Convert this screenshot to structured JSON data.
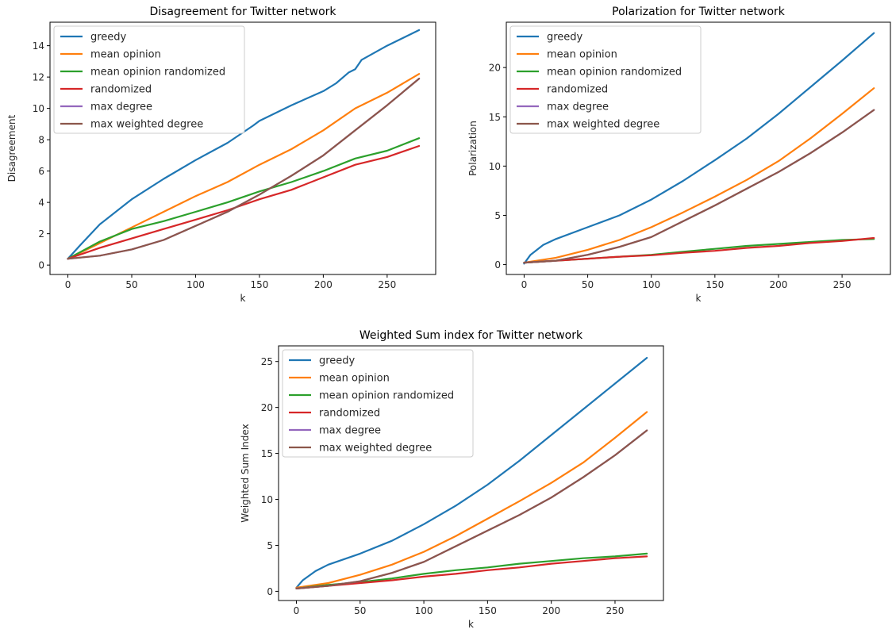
{
  "chart_data": [
    {
      "type": "line",
      "title": "Disagreement for Twitter network",
      "xlabel": "k",
      "ylabel": "Disagreement",
      "xlim": [
        -14,
        288
      ],
      "ylim": [
        -0.6,
        15.5
      ],
      "xticks": [
        0,
        50,
        100,
        150,
        200,
        250
      ],
      "yticks": [
        0,
        2,
        4,
        6,
        8,
        10,
        12,
        14
      ],
      "grid": false,
      "legend_position": "upper-left",
      "series": [
        {
          "name": "greedy",
          "color": "#1f77b4",
          "points": [
            [
              0,
              0.4
            ],
            [
              10,
              1.3
            ],
            [
              25,
              2.6
            ],
            [
              50,
              4.2
            ],
            [
              75,
              5.5
            ],
            [
              100,
              6.7
            ],
            [
              125,
              7.8
            ],
            [
              145,
              8.9
            ],
            [
              150,
              9.2
            ],
            [
              175,
              10.2
            ],
            [
              200,
              11.1
            ],
            [
              210,
              11.6
            ],
            [
              220,
              12.3
            ],
            [
              225,
              12.5
            ],
            [
              230,
              13.1
            ],
            [
              250,
              14.0
            ],
            [
              275,
              15.0
            ]
          ]
        },
        {
          "name": "mean opinion",
          "color": "#ff7f0e",
          "points": [
            [
              0,
              0.4
            ],
            [
              25,
              1.4
            ],
            [
              50,
              2.4
            ],
            [
              75,
              3.4
            ],
            [
              100,
              4.4
            ],
            [
              125,
              5.3
            ],
            [
              150,
              6.4
            ],
            [
              175,
              7.4
            ],
            [
              200,
              8.6
            ],
            [
              225,
              10.0
            ],
            [
              250,
              11.0
            ],
            [
              275,
              12.2
            ]
          ]
        },
        {
          "name": "mean opinion randomized",
          "color": "#2ca02c",
          "points": [
            [
              0,
              0.4
            ],
            [
              25,
              1.5
            ],
            [
              50,
              2.3
            ],
            [
              75,
              2.8
            ],
            [
              100,
              3.4
            ],
            [
              125,
              4.0
            ],
            [
              150,
              4.7
            ],
            [
              175,
              5.3
            ],
            [
              200,
              6.0
            ],
            [
              225,
              6.8
            ],
            [
              250,
              7.3
            ],
            [
              275,
              8.1
            ]
          ]
        },
        {
          "name": "randomized",
          "color": "#d62728",
          "points": [
            [
              0,
              0.4
            ],
            [
              25,
              1.1
            ],
            [
              50,
              1.7
            ],
            [
              75,
              2.3
            ],
            [
              100,
              2.9
            ],
            [
              125,
              3.5
            ],
            [
              150,
              4.2
            ],
            [
              175,
              4.8
            ],
            [
              200,
              5.6
            ],
            [
              225,
              6.4
            ],
            [
              250,
              6.9
            ],
            [
              275,
              7.6
            ]
          ]
        },
        {
          "name": "max degree",
          "color": "#9467bd",
          "points": [
            [
              0,
              0.4
            ],
            [
              25,
              0.6
            ],
            [
              50,
              1.0
            ],
            [
              75,
              1.6
            ],
            [
              100,
              2.5
            ],
            [
              125,
              3.4
            ],
            [
              150,
              4.5
            ],
            [
              175,
              5.7
            ],
            [
              200,
              7.0
            ],
            [
              225,
              8.6
            ],
            [
              250,
              10.2
            ],
            [
              275,
              11.9
            ]
          ]
        },
        {
          "name": "max weighted degree",
          "color": "#8c564b",
          "points": [
            [
              0,
              0.4
            ],
            [
              25,
              0.6
            ],
            [
              50,
              1.0
            ],
            [
              75,
              1.6
            ],
            [
              100,
              2.5
            ],
            [
              125,
              3.4
            ],
            [
              150,
              4.5
            ],
            [
              175,
              5.7
            ],
            [
              200,
              7.0
            ],
            [
              225,
              8.6
            ],
            [
              250,
              10.2
            ],
            [
              275,
              11.9
            ]
          ]
        }
      ]
    },
    {
      "type": "line",
      "title": "Polarization for Twitter network",
      "xlabel": "k",
      "ylabel": "Polarization",
      "xlim": [
        -14,
        288
      ],
      "ylim": [
        -1.0,
        24.6
      ],
      "xticks": [
        0,
        50,
        100,
        150,
        200,
        250
      ],
      "yticks": [
        0,
        5,
        10,
        15,
        20
      ],
      "grid": false,
      "legend_position": "upper-left",
      "series": [
        {
          "name": "greedy",
          "color": "#1f77b4",
          "points": [
            [
              0,
              0.1
            ],
            [
              5,
              1.0
            ],
            [
              15,
              2.0
            ],
            [
              25,
              2.6
            ],
            [
              50,
              3.8
            ],
            [
              75,
              5.0
            ],
            [
              100,
              6.6
            ],
            [
              125,
              8.5
            ],
            [
              150,
              10.6
            ],
            [
              175,
              12.8
            ],
            [
              200,
              15.3
            ],
            [
              225,
              18.0
            ],
            [
              250,
              20.7
            ],
            [
              275,
              23.5
            ]
          ]
        },
        {
          "name": "mean opinion",
          "color": "#ff7f0e",
          "points": [
            [
              0,
              0.2
            ],
            [
              25,
              0.7
            ],
            [
              50,
              1.5
            ],
            [
              75,
              2.5
            ],
            [
              100,
              3.8
            ],
            [
              125,
              5.3
            ],
            [
              150,
              6.9
            ],
            [
              175,
              8.6
            ],
            [
              200,
              10.5
            ],
            [
              225,
              12.8
            ],
            [
              250,
              15.3
            ],
            [
              275,
              17.9
            ]
          ]
        },
        {
          "name": "mean opinion randomized",
          "color": "#2ca02c",
          "points": [
            [
              0,
              0.2
            ],
            [
              25,
              0.4
            ],
            [
              50,
              0.6
            ],
            [
              75,
              0.8
            ],
            [
              100,
              1.0
            ],
            [
              125,
              1.3
            ],
            [
              150,
              1.6
            ],
            [
              175,
              1.9
            ],
            [
              200,
              2.1
            ],
            [
              225,
              2.3
            ],
            [
              250,
              2.5
            ],
            [
              275,
              2.6
            ]
          ]
        },
        {
          "name": "randomized",
          "color": "#d62728",
          "points": [
            [
              0,
              0.2
            ],
            [
              25,
              0.4
            ],
            [
              50,
              0.6
            ],
            [
              75,
              0.8
            ],
            [
              100,
              0.95
            ],
            [
              125,
              1.2
            ],
            [
              150,
              1.4
            ],
            [
              175,
              1.7
            ],
            [
              200,
              1.9
            ],
            [
              225,
              2.2
            ],
            [
              250,
              2.4
            ],
            [
              275,
              2.7
            ]
          ]
        },
        {
          "name": "max degree",
          "color": "#9467bd",
          "points": [
            [
              0,
              0.2
            ],
            [
              25,
              0.4
            ],
            [
              50,
              1.0
            ],
            [
              75,
              1.8
            ],
            [
              100,
              2.8
            ],
            [
              125,
              4.4
            ],
            [
              150,
              6.0
            ],
            [
              175,
              7.7
            ],
            [
              200,
              9.4
            ],
            [
              225,
              11.3
            ],
            [
              250,
              13.4
            ],
            [
              275,
              15.7
            ]
          ]
        },
        {
          "name": "max weighted degree",
          "color": "#8c564b",
          "points": [
            [
              0,
              0.2
            ],
            [
              25,
              0.4
            ],
            [
              50,
              1.0
            ],
            [
              75,
              1.8
            ],
            [
              100,
              2.8
            ],
            [
              125,
              4.4
            ],
            [
              150,
              6.0
            ],
            [
              175,
              7.7
            ],
            [
              200,
              9.4
            ],
            [
              225,
              11.3
            ],
            [
              250,
              13.4
            ],
            [
              275,
              15.7
            ]
          ]
        }
      ]
    },
    {
      "type": "line",
      "title": "Weighted Sum index for Twitter network",
      "xlabel": "k",
      "ylabel": "Weighted Sum Index",
      "xlim": [
        -14,
        288
      ],
      "ylim": [
        -1.0,
        26.7
      ],
      "xticks": [
        0,
        50,
        100,
        150,
        200,
        250
      ],
      "yticks": [
        0,
        5,
        10,
        15,
        20,
        25
      ],
      "grid": false,
      "legend_position": "upper-left",
      "series": [
        {
          "name": "greedy",
          "color": "#1f77b4",
          "points": [
            [
              0,
              0.4
            ],
            [
              5,
              1.2
            ],
            [
              15,
              2.2
            ],
            [
              25,
              2.9
            ],
            [
              50,
              4.1
            ],
            [
              75,
              5.5
            ],
            [
              100,
              7.3
            ],
            [
              125,
              9.3
            ],
            [
              150,
              11.6
            ],
            [
              175,
              14.2
            ],
            [
              200,
              17.0
            ],
            [
              225,
              19.8
            ],
            [
              250,
              22.6
            ],
            [
              275,
              25.4
            ]
          ]
        },
        {
          "name": "mean opinion",
          "color": "#ff7f0e",
          "points": [
            [
              0,
              0.4
            ],
            [
              25,
              0.9
            ],
            [
              50,
              1.8
            ],
            [
              75,
              2.9
            ],
            [
              100,
              4.3
            ],
            [
              125,
              6.0
            ],
            [
              150,
              7.9
            ],
            [
              175,
              9.8
            ],
            [
              200,
              11.8
            ],
            [
              225,
              14.0
            ],
            [
              250,
              16.7
            ],
            [
              275,
              19.5
            ]
          ]
        },
        {
          "name": "mean opinion randomized",
          "color": "#2ca02c",
          "points": [
            [
              0,
              0.3
            ],
            [
              25,
              0.7
            ],
            [
              50,
              1.0
            ],
            [
              75,
              1.4
            ],
            [
              100,
              1.9
            ],
            [
              125,
              2.3
            ],
            [
              150,
              2.6
            ],
            [
              175,
              3.0
            ],
            [
              200,
              3.3
            ],
            [
              225,
              3.6
            ],
            [
              250,
              3.8
            ],
            [
              275,
              4.1
            ]
          ]
        },
        {
          "name": "randomized",
          "color": "#d62728",
          "points": [
            [
              0,
              0.3
            ],
            [
              25,
              0.6
            ],
            [
              50,
              0.9
            ],
            [
              75,
              1.2
            ],
            [
              100,
              1.6
            ],
            [
              125,
              1.9
            ],
            [
              150,
              2.3
            ],
            [
              175,
              2.6
            ],
            [
              200,
              3.0
            ],
            [
              225,
              3.3
            ],
            [
              250,
              3.6
            ],
            [
              275,
              3.8
            ]
          ]
        },
        {
          "name": "max degree",
          "color": "#9467bd",
          "points": [
            [
              0,
              0.3
            ],
            [
              25,
              0.6
            ],
            [
              50,
              1.1
            ],
            [
              75,
              2.0
            ],
            [
              100,
              3.2
            ],
            [
              125,
              4.9
            ],
            [
              150,
              6.6
            ],
            [
              175,
              8.3
            ],
            [
              200,
              10.2
            ],
            [
              225,
              12.4
            ],
            [
              250,
              14.8
            ],
            [
              275,
              17.5
            ]
          ]
        },
        {
          "name": "max weighted degree",
          "color": "#8c564b",
          "points": [
            [
              0,
              0.3
            ],
            [
              25,
              0.6
            ],
            [
              50,
              1.1
            ],
            [
              75,
              2.0
            ],
            [
              100,
              3.2
            ],
            [
              125,
              4.9
            ],
            [
              150,
              6.6
            ],
            [
              175,
              8.3
            ],
            [
              200,
              10.2
            ],
            [
              225,
              12.4
            ],
            [
              250,
              14.8
            ],
            [
              275,
              17.5
            ]
          ]
        }
      ]
    }
  ]
}
